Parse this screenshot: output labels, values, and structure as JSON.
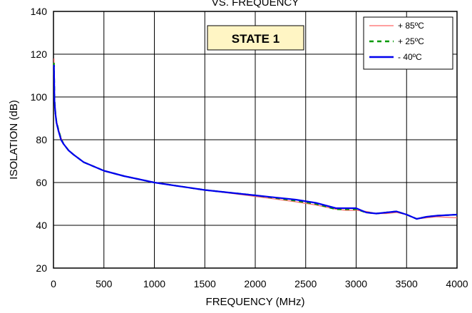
{
  "chart_data": {
    "type": "line",
    "title": "VS. FREQUENCY",
    "xlabel": "FREQUENCY (MHz)",
    "ylabel": "ISOLATION (dB)",
    "xlim": [
      0,
      4000
    ],
    "ylim": [
      20,
      140
    ],
    "x_ticks": [
      "0",
      "500",
      "1000",
      "1500",
      "2000",
      "2500",
      "3000",
      "3500",
      "4000"
    ],
    "y_ticks": [
      "20",
      "40",
      "60",
      "80",
      "100",
      "120",
      "140"
    ],
    "grid": true,
    "legend_position": "top-right",
    "annotation": "STATE 1",
    "x": [
      5,
      10,
      20,
      30,
      50,
      75,
      100,
      150,
      200,
      300,
      400,
      500,
      700,
      1000,
      1500,
      2000,
      2400,
      2600,
      2800,
      2900,
      3000,
      3100,
      3200,
      3300,
      3400,
      3500,
      3600,
      3700,
      3800,
      4000
    ],
    "series": [
      {
        "name": "+ 85ºC",
        "color": "#ff6666",
        "dash": "solid",
        "values": [
          118,
          100,
          93,
          89,
          85,
          81,
          78,
          75,
          73,
          69.5,
          67.5,
          65.5,
          63,
          60,
          56.5,
          53.5,
          51,
          49.5,
          47.5,
          47,
          47,
          46.5,
          45.5,
          45.5,
          46,
          45,
          43,
          43.5,
          44,
          43.5
        ]
      },
      {
        "name": "+ 25ºC",
        "color": "#009900",
        "dash": "dashed",
        "values": [
          116,
          99,
          92,
          88.5,
          84.5,
          80.5,
          78,
          75,
          73,
          69.5,
          67.5,
          65.5,
          63,
          60,
          56.5,
          54,
          51.5,
          50,
          47.5,
          47.5,
          47.5,
          46,
          45.5,
          46,
          46.5,
          45,
          43,
          44,
          44.5,
          45
        ]
      },
      {
        "name": "- 40ºC",
        "color": "#0000ee",
        "dash": "solid",
        "values": [
          115,
          98,
          92,
          88,
          84,
          80,
          78,
          75,
          73,
          69.5,
          67.5,
          65.5,
          63,
          60,
          56.5,
          54,
          52,
          50.5,
          48,
          48,
          48,
          46,
          45.5,
          46,
          46.5,
          45,
          43,
          44,
          44.5,
          45
        ]
      }
    ]
  }
}
